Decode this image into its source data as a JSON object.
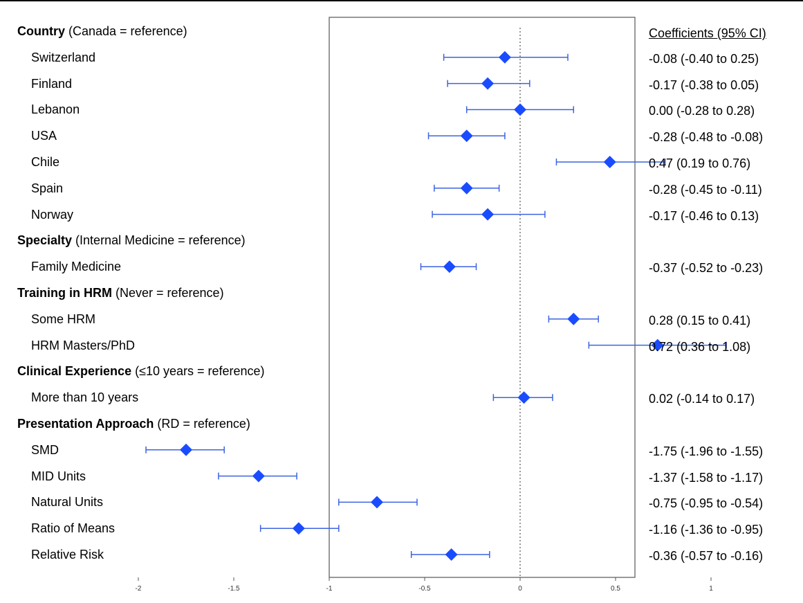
{
  "chart_data": {
    "type": "forest",
    "coefficients_header": "Coefficients (95% CI)",
    "xlim": [
      -2,
      1.2
    ],
    "xticks": [
      "-2",
      "-1.5",
      "-1",
      "-0.5",
      "0",
      "0.5",
      "1"
    ],
    "reference_line": 0,
    "rows": [
      {
        "kind": "header",
        "bold": "Country",
        "rest": " (Canada = reference)"
      },
      {
        "kind": "item",
        "label": "Switzerland",
        "est": -0.08,
        "lo": -0.4,
        "hi": 0.25,
        "text": "-0.08 (-0.40 to 0.25)"
      },
      {
        "kind": "item",
        "label": "Finland",
        "est": -0.17,
        "lo": -0.38,
        "hi": 0.05,
        "text": "-0.17 (-0.38 to 0.05)"
      },
      {
        "kind": "item",
        "label": "Lebanon",
        "est": 0.0,
        "lo": -0.28,
        "hi": 0.28,
        "text": "0.00 (-0.28 to 0.28)"
      },
      {
        "kind": "item",
        "label": "USA",
        "est": -0.28,
        "lo": -0.48,
        "hi": -0.08,
        "text": "-0.28 (-0.48 to -0.08)"
      },
      {
        "kind": "item",
        "label": "Chile",
        "est": 0.47,
        "lo": 0.19,
        "hi": 0.76,
        "text": "0.47 (0.19 to 0.76)"
      },
      {
        "kind": "item",
        "label": "Spain",
        "est": -0.28,
        "lo": -0.45,
        "hi": -0.11,
        "text": "-0.28 (-0.45 to -0.11)"
      },
      {
        "kind": "item",
        "label": "Norway",
        "est": -0.17,
        "lo": -0.46,
        "hi": 0.13,
        "text": "-0.17 (-0.46 to 0.13)"
      },
      {
        "kind": "header",
        "bold": "Specialty",
        "rest": " (Internal Medicine = reference)"
      },
      {
        "kind": "item",
        "label": "Family Medicine",
        "est": -0.37,
        "lo": -0.52,
        "hi": -0.23,
        "text": "-0.37 (-0.52 to -0.23)"
      },
      {
        "kind": "header",
        "bold": "Training in HRM",
        "rest": " (Never = reference)"
      },
      {
        "kind": "item",
        "label": "Some HRM",
        "est": 0.28,
        "lo": 0.15,
        "hi": 0.41,
        "text": "0.28 (0.15 to 0.41)"
      },
      {
        "kind": "item",
        "label": "HRM Masters/PhD",
        "est": 0.72,
        "lo": 0.36,
        "hi": 1.08,
        "text": "0.72 (0.36 to 1.08)"
      },
      {
        "kind": "header",
        "bold": "Clinical Experience",
        "rest": " (≤10 years = reference)"
      },
      {
        "kind": "item",
        "label": "More than 10 years",
        "est": 0.02,
        "lo": -0.14,
        "hi": 0.17,
        "text": "0.02 (-0.14 to 0.17)"
      },
      {
        "kind": "header",
        "bold": "Presentation Approach",
        "rest": " (RD = reference)"
      },
      {
        "kind": "item",
        "label": "SMD",
        "est": -1.75,
        "lo": -1.96,
        "hi": -1.55,
        "text": "-1.75 (-1.96 to -1.55)"
      },
      {
        "kind": "item",
        "label": "MID Units",
        "est": -1.37,
        "lo": -1.58,
        "hi": -1.17,
        "text": "-1.37 (-1.58 to -1.17)"
      },
      {
        "kind": "item",
        "label": "Natural Units",
        "est": -0.75,
        "lo": -0.95,
        "hi": -0.54,
        "text": "-0.75 (-0.95 to -0.54)"
      },
      {
        "kind": "item",
        "label": "Ratio of Means",
        "est": -1.16,
        "lo": -1.36,
        "hi": -0.95,
        "text": "-1.16 (-1.36 to -0.95)"
      },
      {
        "kind": "item",
        "label": "Relative Risk",
        "est": -0.36,
        "lo": -0.57,
        "hi": -0.16,
        "text": "-0.36 (-0.57 to -0.16)"
      }
    ],
    "colors": {
      "marker": "#1a4cff",
      "ci": "#3b63e0",
      "frame": "#555555",
      "refline": "#555555"
    }
  }
}
